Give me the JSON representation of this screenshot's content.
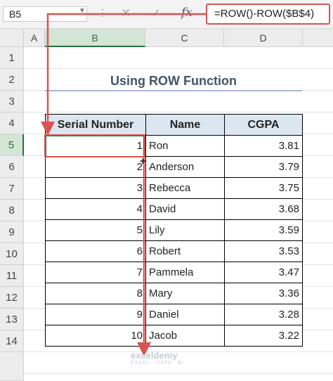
{
  "formula_bar": {
    "name_box": "B5",
    "cancel_icon": "✕",
    "enter_icon": "✓",
    "fx_label": "fx",
    "formula": "=ROW()-ROW($B$4)"
  },
  "column_headers": [
    "A",
    "B",
    "C",
    "D"
  ],
  "row_headers": [
    "1",
    "2",
    "3",
    "4",
    "5",
    "6",
    "7",
    "8",
    "9",
    "10",
    "11",
    "12",
    "13",
    "14"
  ],
  "sheet": {
    "title": "Using ROW Function",
    "table": {
      "headers": [
        "Serial Number",
        "Name",
        "CGPA"
      ],
      "rows": [
        {
          "serial": "1",
          "name": "Ron",
          "cgpa": "3.81"
        },
        {
          "serial": "2",
          "name": "Anderson",
          "cgpa": "3.79"
        },
        {
          "serial": "3",
          "name": "Rebecca",
          "cgpa": "3.75"
        },
        {
          "serial": "4",
          "name": "David",
          "cgpa": "3.68"
        },
        {
          "serial": "5",
          "name": "Lily",
          "cgpa": "3.59"
        },
        {
          "serial": "6",
          "name": "Robert",
          "cgpa": "3.53"
        },
        {
          "serial": "7",
          "name": "Pammela",
          "cgpa": "3.47"
        },
        {
          "serial": "8",
          "name": "Mary",
          "cgpa": "3.36"
        },
        {
          "serial": "9",
          "name": "Daniel",
          "cgpa": "3.28"
        },
        {
          "serial": "10",
          "name": "Jacob",
          "cgpa": "3.22"
        }
      ]
    }
  },
  "watermark": {
    "brand": "exceldemy",
    "tagline": "EXCEL · DATA · BI"
  },
  "colors": {
    "accent": "#217346",
    "highlight": "#d9534f",
    "header_fill": "#dce6f1"
  }
}
